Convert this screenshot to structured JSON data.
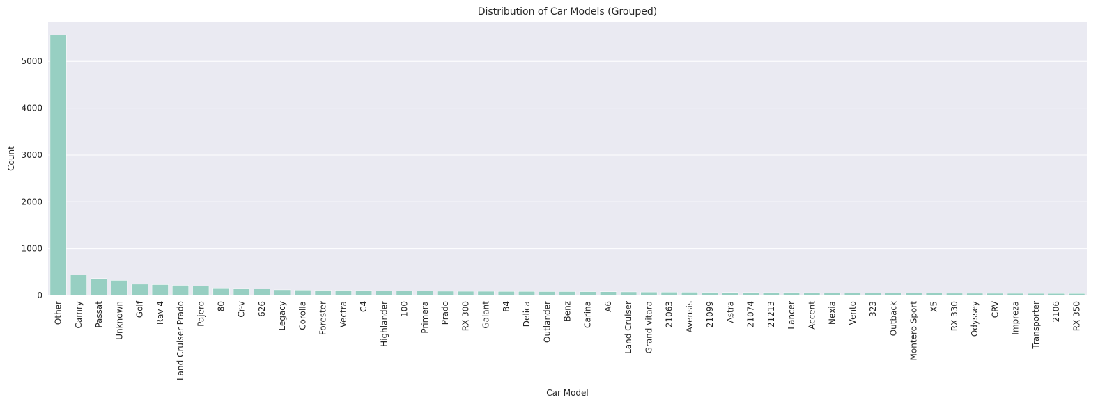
{
  "chart_data": {
    "type": "bar",
    "title": "Distribution of Car Models (Grouped)",
    "xlabel": "Car Model",
    "ylabel": "Count",
    "ylim": [
      0,
      5850
    ],
    "yticks": [
      0,
      1000,
      2000,
      3000,
      4000,
      5000
    ],
    "grid": true,
    "bar_color": "#97cfc2",
    "plot_background": "#eaeaf2",
    "grid_color": "#ffffff",
    "categories": [
      "Other",
      "Camry",
      "Passat",
      "Unknown",
      "Golf",
      "Rav 4",
      "Land Cruiser Prado",
      "Pajero",
      "80",
      "Cr-v",
      "626",
      "Legacy",
      "Corolla",
      "Forester",
      "Vectra",
      "C4",
      "Highlander",
      "100",
      "Primera",
      "Prado",
      "RX 300",
      "Galant",
      "B4",
      "Delica",
      "Outlander",
      "Benz",
      "Carina",
      "A6",
      "Land Cruiser",
      "Grand vitara",
      "21063",
      "Avensis",
      "21099",
      "Astra",
      "21074",
      "21213",
      "Lancer",
      "Accent",
      "Nexia",
      "Vento",
      "323",
      "Outback",
      "Montero Sport",
      "X5",
      "RX 330",
      "Odyssey",
      "CRV",
      "Impreza",
      "Transporter",
      "2106",
      "RX 350"
    ],
    "values": [
      5560,
      440,
      360,
      320,
      240,
      230,
      215,
      200,
      160,
      150,
      145,
      120,
      115,
      110,
      110,
      105,
      100,
      100,
      95,
      90,
      88,
      88,
      85,
      85,
      82,
      82,
      80,
      78,
      75,
      72,
      70,
      68,
      65,
      63,
      62,
      60,
      60,
      58,
      56,
      54,
      52,
      50,
      49,
      48,
      47,
      46,
      45,
      44,
      43,
      42,
      41
    ]
  }
}
